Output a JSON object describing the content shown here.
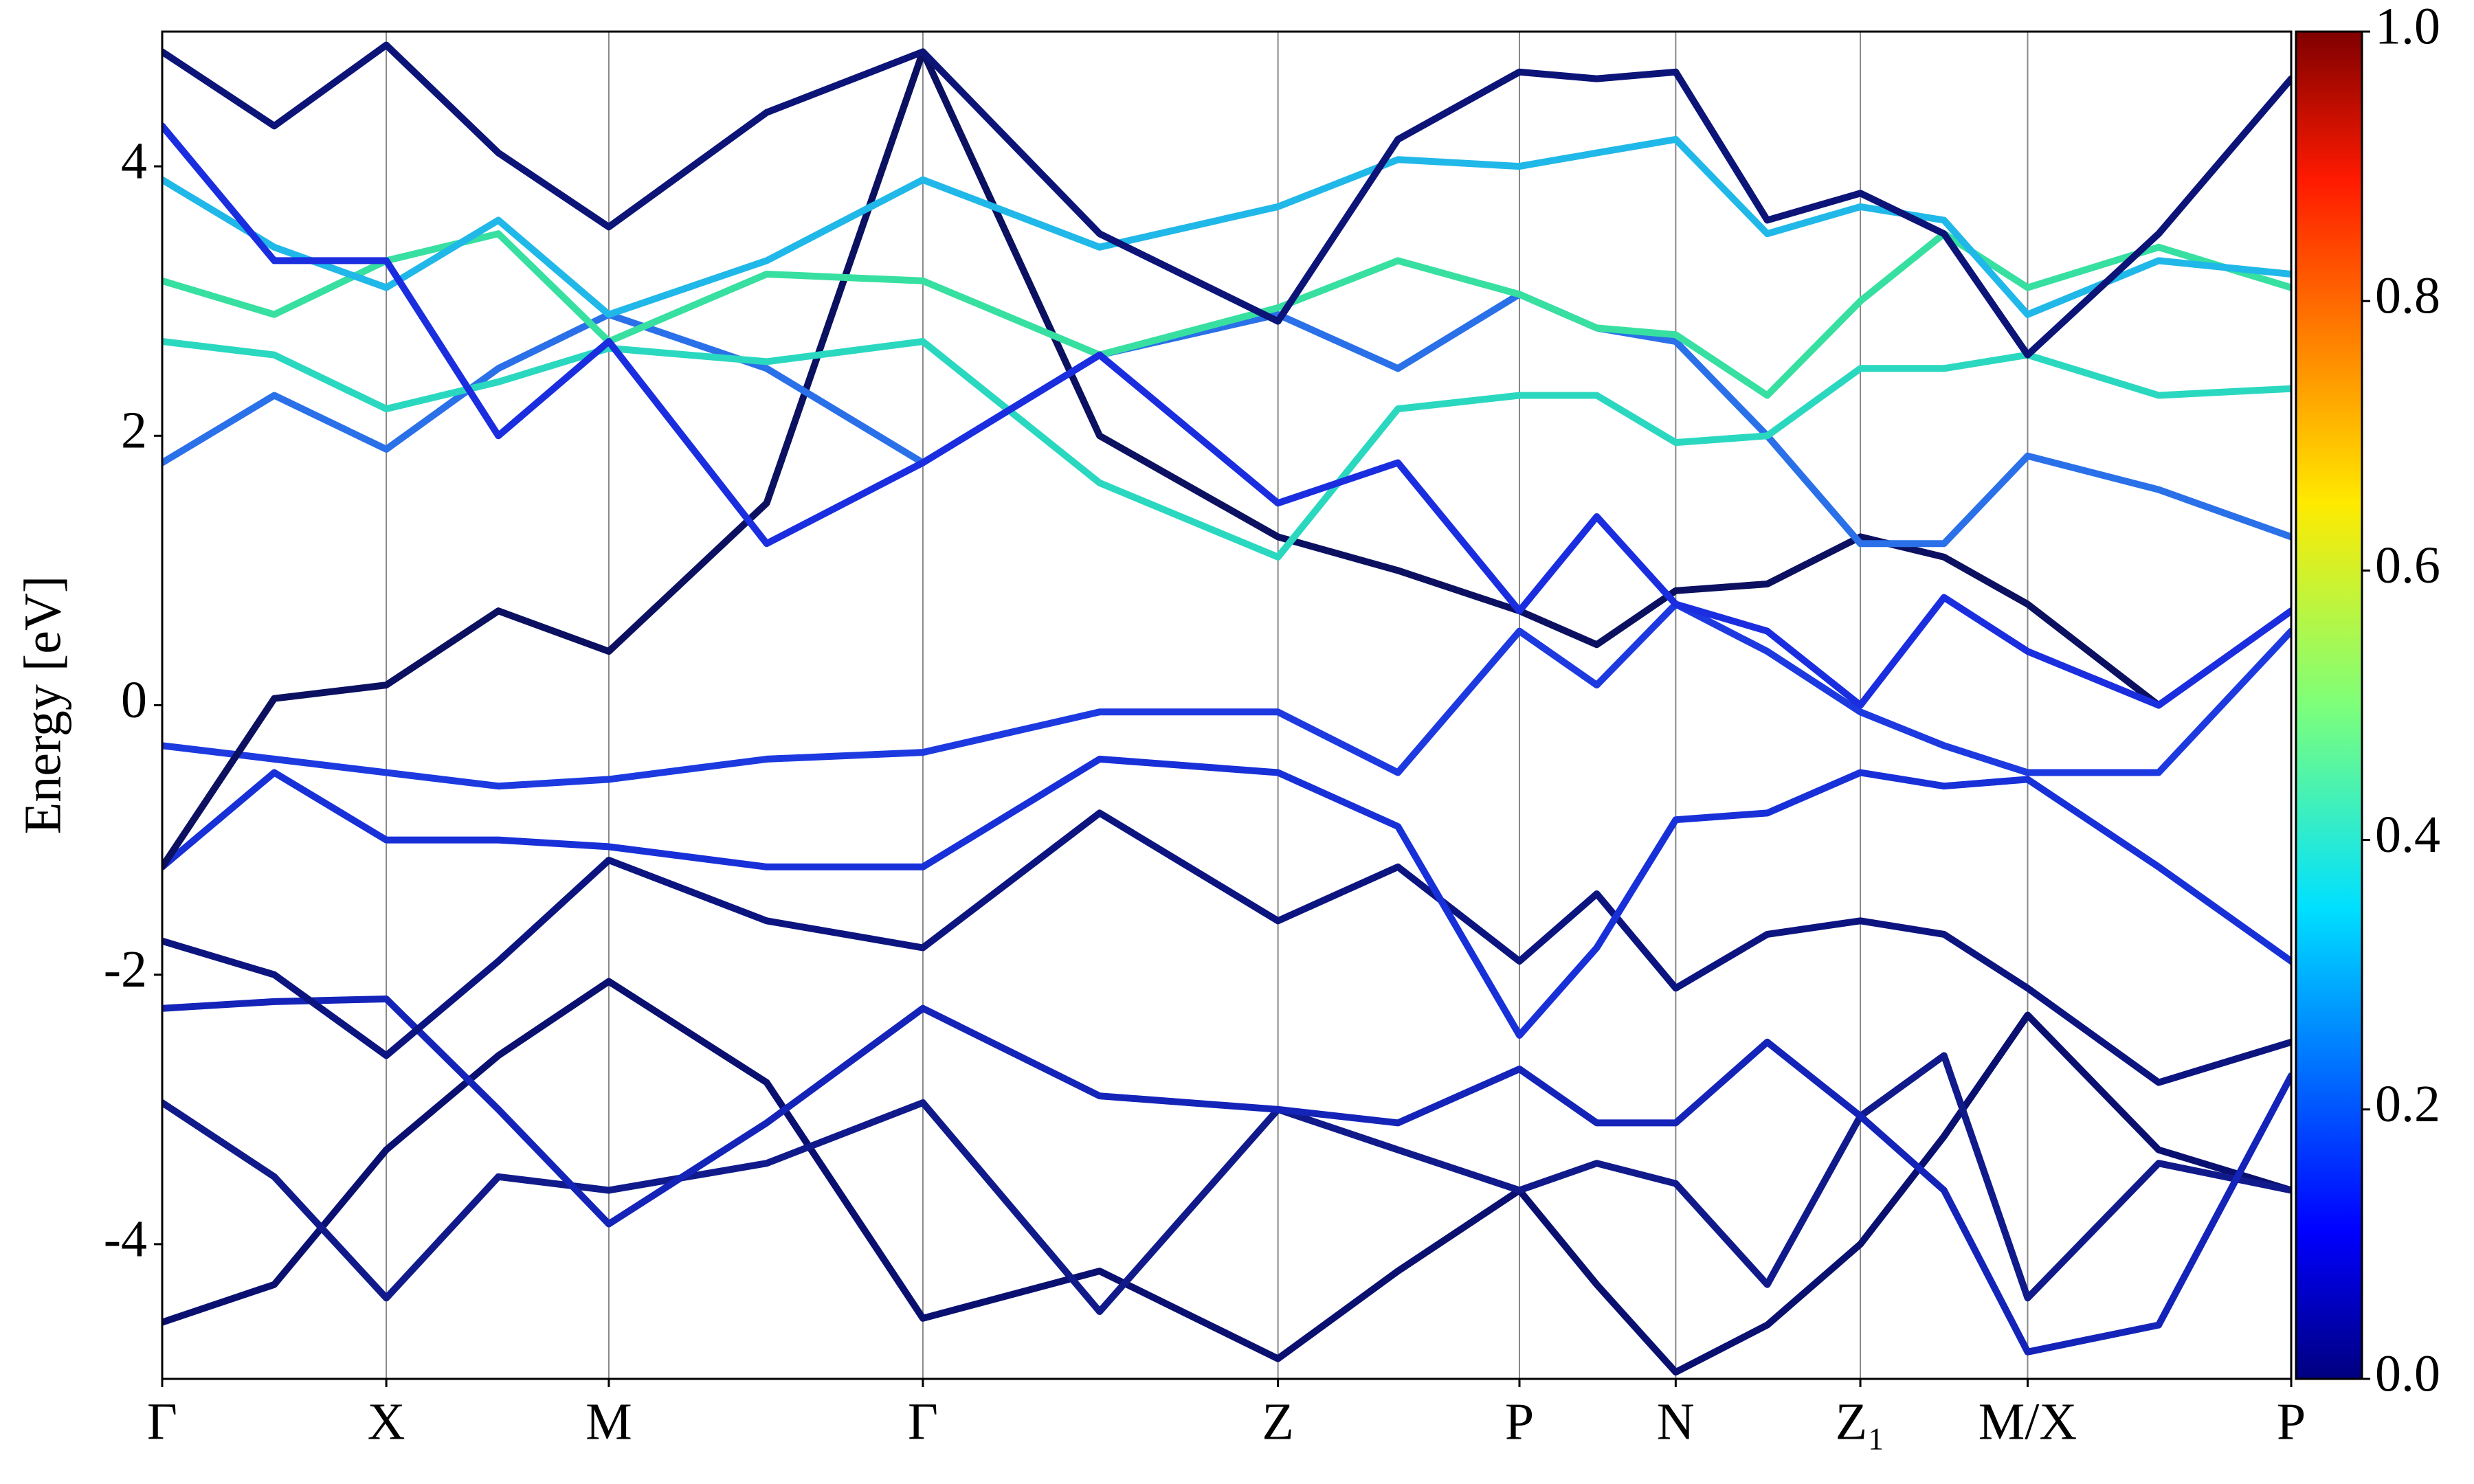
{
  "chart_data": {
    "type": "line",
    "ylabel": "Energy [eV]",
    "x": [
      0,
      0.71,
      1.42,
      2.13,
      2.83,
      3.83,
      4.82,
      5.94,
      7.07,
      7.83,
      8.6,
      9.09,
      9.59,
      10.17,
      10.76,
      11.29,
      11.82,
      12.65,
      13.49
    ],
    "xlim": [
      0,
      13.49
    ],
    "xticks": [
      {
        "value": 0,
        "label": "Γ"
      },
      {
        "value": 1.42,
        "label": "X"
      },
      {
        "value": 2.83,
        "label": "M"
      },
      {
        "value": 4.82,
        "label": "Γ"
      },
      {
        "value": 7.07,
        "label": "Z"
      },
      {
        "value": 8.6,
        "label": "P"
      },
      {
        "value": 9.59,
        "label": "N"
      },
      {
        "value": 10.76,
        "label": "Z₁"
      },
      {
        "value": 11.82,
        "label": "M/X"
      },
      {
        "value": 13.49,
        "label": "P"
      }
    ],
    "ylim": [
      -5,
      5
    ],
    "yticks": [
      -4,
      -2,
      0,
      2,
      4
    ],
    "grid": "x",
    "series": [
      {
        "color": "#0a1070",
        "values": [
          -4.58,
          -4.3,
          -3.3,
          -2.6,
          -2.05,
          -2.8,
          -4.55,
          -4.2,
          -4.85,
          -4.2,
          -3.6,
          -4.3,
          -4.95,
          -4.6,
          -4.0,
          -3.2,
          -2.3,
          -3.3,
          -3.6
        ]
      },
      {
        "color": "#101a8a",
        "values": [
          -2.95,
          -3.5,
          -4.4,
          -3.5,
          -3.6,
          -3.4,
          -2.95,
          -4.5,
          -3.0,
          -3.3,
          -3.6,
          -3.4,
          -3.55,
          -4.3,
          -3.05,
          -2.6,
          -4.4,
          -3.4,
          -3.6
        ]
      },
      {
        "color": "#1424b8",
        "values": [
          -2.25,
          -2.2,
          -2.18,
          -3.0,
          -3.85,
          -3.1,
          -2.25,
          -2.9,
          -3.0,
          -3.1,
          -2.7,
          -3.1,
          -3.1,
          -2.5,
          -3.05,
          -3.6,
          -4.8,
          -4.6,
          -2.75
        ]
      },
      {
        "color": "#0c1480",
        "values": [
          -1.75,
          -2.0,
          -2.6,
          -1.9,
          -1.15,
          -1.6,
          -1.8,
          -0.8,
          -1.6,
          -1.2,
          -1.9,
          -1.4,
          -2.1,
          -1.7,
          -1.6,
          -1.7,
          -2.1,
          -2.8,
          -2.5
        ]
      },
      {
        "color": "#1830d8",
        "values": [
          -1.2,
          -0.5,
          -1.0,
          -1.0,
          -1.05,
          -1.2,
          -1.2,
          -0.4,
          -0.5,
          -0.9,
          -2.45,
          -1.8,
          -0.85,
          -0.8,
          -0.5,
          -0.6,
          -0.55,
          -1.2,
          -1.9
        ]
      },
      {
        "color": "#1c3ae0",
        "values": [
          -0.3,
          -0.4,
          -0.5,
          -0.6,
          -0.55,
          -0.4,
          -0.35,
          -0.05,
          -0.05,
          -0.5,
          0.55,
          0.15,
          0.75,
          0.4,
          -0.05,
          -0.3,
          -0.5,
          -0.5,
          0.55
        ]
      },
      {
        "color": "#0b1060",
        "values": [
          -1.2,
          0.05,
          0.15,
          0.7,
          0.4,
          1.5,
          4.85,
          2.0,
          1.25,
          1.0,
          0.7,
          0.45,
          0.85,
          0.9,
          1.25,
          1.1,
          0.75,
          0.0,
          0.7
        ]
      },
      {
        "color": "#2a70e8",
        "values": [
          1.8,
          2.3,
          1.9,
          2.5,
          2.9,
          2.5,
          1.8,
          2.6,
          2.9,
          2.5,
          3.05,
          2.8,
          2.7,
          2.0,
          1.2,
          1.2,
          1.85,
          1.6,
          1.25
        ]
      },
      {
        "color": "#2ad8c0",
        "values": [
          2.7,
          2.6,
          2.2,
          2.4,
          2.65,
          2.55,
          2.7,
          1.65,
          1.1,
          2.2,
          2.3,
          2.3,
          1.95,
          2.0,
          2.5,
          2.5,
          2.6,
          2.3,
          2.35
        ]
      },
      {
        "color": "#37e0a0",
        "values": [
          3.15,
          2.9,
          3.3,
          3.5,
          2.7,
          3.2,
          3.15,
          2.6,
          2.95,
          3.3,
          3.05,
          2.8,
          2.75,
          2.3,
          3.0,
          3.5,
          3.1,
          3.4,
          3.1
        ]
      },
      {
        "color": "#20b8e8",
        "values": [
          3.9,
          3.4,
          3.1,
          3.6,
          2.9,
          3.3,
          3.9,
          3.4,
          3.7,
          4.05,
          4.0,
          4.1,
          4.2,
          3.5,
          3.7,
          3.6,
          2.9,
          3.3,
          3.2
        ]
      },
      {
        "color": "#0c1478",
        "values": [
          4.85,
          4.3,
          4.9,
          4.1,
          3.55,
          4.4,
          4.85,
          3.5,
          2.85,
          4.2,
          4.7,
          4.65,
          4.7,
          3.6,
          3.8,
          3.5,
          2.6,
          3.5,
          4.65
        ]
      },
      {
        "color": "#1a2ee0",
        "values": [
          4.3,
          3.3,
          3.3,
          2.0,
          2.7,
          1.2,
          1.8,
          2.6,
          1.5,
          1.8,
          0.7,
          1.4,
          0.75,
          0.55,
          0.0,
          0.8,
          0.4,
          0.0,
          0.7
        ]
      }
    ],
    "colorbar": {
      "lim": [
        0,
        1
      ],
      "ticks": [
        {
          "value": 0,
          "label": "0.0"
        },
        0.2,
        0.4,
        0.6,
        0.8,
        {
          "value": 1,
          "label": "1.0"
        }
      ]
    }
  }
}
